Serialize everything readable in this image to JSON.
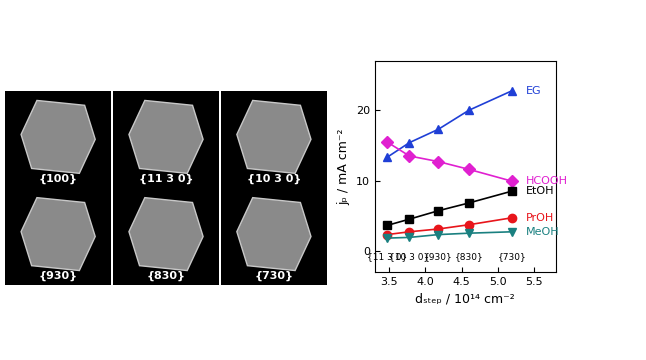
{
  "chart_data": {
    "type": "line",
    "x_label": "dₛₜₑₚ / 10¹⁴ cm⁻²",
    "y_label": "jₚ / mA cm⁻²",
    "x": [
      3.47,
      3.78,
      4.18,
      4.6,
      5.2
    ],
    "point_labels": [
      "{11 3 0}",
      "{10 3 0}",
      "{930}",
      "{830}",
      "{730}"
    ],
    "series": [
      {
        "name": "EG",
        "color": "#1f3fd6",
        "marker": "triangle_up",
        "values": [
          13.3,
          15.4,
          17.3,
          20.0,
          22.8
        ]
      },
      {
        "name": "HCOOH",
        "color": "#e020d0",
        "marker": "diamond",
        "values": [
          15.5,
          13.5,
          12.7,
          11.6,
          9.9
        ]
      },
      {
        "name": "EtOH",
        "color": "#000000",
        "marker": "square",
        "values": [
          3.6,
          4.5,
          5.7,
          6.8,
          8.5
        ]
      },
      {
        "name": "PrOH",
        "color": "#e8151b",
        "marker": "circle",
        "values": [
          2.3,
          2.7,
          3.1,
          3.7,
          4.7
        ]
      },
      {
        "name": "MeOH",
        "color": "#1a8080",
        "marker": "triangle_down",
        "values": [
          1.8,
          1.9,
          2.3,
          2.5,
          2.7
        ]
      }
    ],
    "xlim": [
      3.3,
      5.8
    ],
    "xticks": [
      3.5,
      {
        "value": 4,
        "label": "4.0"
      },
      4.5,
      {
        "value": 5,
        "label": "5.0"
      },
      5.5
    ],
    "ylim": [
      -3,
      27
    ],
    "yticks": [
      0,
      10,
      20
    ],
    "grid": false
  },
  "panels": [
    {
      "label": "{100}"
    },
    {
      "label": "{11 3 0}"
    },
    {
      "label": "{10 3 0}"
    },
    {
      "label": "{930}"
    },
    {
      "label": "{830}"
    },
    {
      "label": "{730}"
    }
  ]
}
